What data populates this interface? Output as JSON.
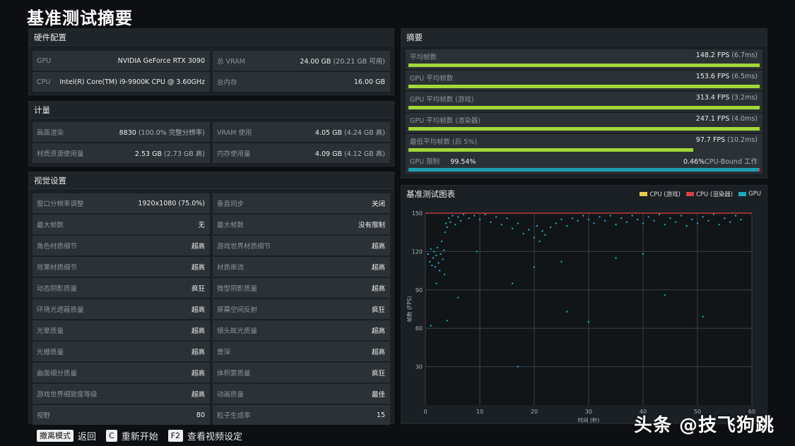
{
  "page_title": "基准测试摘要",
  "hardware": {
    "title": "硬件配置",
    "rows": [
      {
        "label": "GPU",
        "value": "NVIDIA GeForce RTX 3090",
        "sub": ""
      },
      {
        "label": "总 VRAM",
        "value": "24.00 GB",
        "sub": "(20.21 GB 可用)"
      },
      {
        "label": "CPU",
        "value": "Intel(R) Core(TM) i9-9900K CPU @ 3.60GHz",
        "sub": ""
      },
      {
        "label": "总内存",
        "value": "16.00 GB",
        "sub": ""
      }
    ]
  },
  "metrics": {
    "title": "计量",
    "rows": [
      {
        "label": "画面渲染",
        "value": "8830",
        "sub": "(100.0% 完整分辨率)"
      },
      {
        "label": "VRAM 使用",
        "value": "4.05 GB",
        "sub": "(4.24 GB 高)"
      },
      {
        "label": "材质资源使用量",
        "value": "2.53 GB",
        "sub": "(2.73 GB 高)"
      },
      {
        "label": "内存使用量",
        "value": "4.09 GB",
        "sub": "(4.12 GB 高)"
      }
    ]
  },
  "visual": {
    "title": "视觉设置",
    "rows": [
      {
        "label": "窗口分辨率调整",
        "value": "1920x1080 (75.0%)"
      },
      {
        "label": "垂直同步",
        "value": "关闭"
      },
      {
        "label": "最大帧数",
        "value": "无"
      },
      {
        "label": "最大帧数",
        "value": "没有限制"
      },
      {
        "label": "角色材质细节",
        "value": "超高"
      },
      {
        "label": "游戏世界材质细节",
        "value": "超高"
      },
      {
        "label": "效果材质细节",
        "value": "超高"
      },
      {
        "label": "材质串流",
        "value": "超高"
      },
      {
        "label": "动态阴影质量",
        "value": "疯狂"
      },
      {
        "label": "微型阴影质量",
        "value": "超高"
      },
      {
        "label": "环境光遮蔽质量",
        "value": "超高"
      },
      {
        "label": "屏幕空间反射",
        "value": "疯狂"
      },
      {
        "label": "光晕质量",
        "value": "超高"
      },
      {
        "label": "镜头眩光质量",
        "value": "超高"
      },
      {
        "label": "光栅质量",
        "value": "超高"
      },
      {
        "label": "景深",
        "value": "超高"
      },
      {
        "label": "曲面细分质量",
        "value": "超高"
      },
      {
        "label": "体积雾质量",
        "value": "疯狂"
      },
      {
        "label": "游戏世界细致度等级",
        "value": "超高"
      },
      {
        "label": "动画质量",
        "value": "最佳"
      },
      {
        "label": "视野",
        "value": "80"
      },
      {
        "label": "粒子生成率",
        "value": "15"
      }
    ]
  },
  "summary": {
    "title": "摘要",
    "rows": [
      {
        "label": "平均帧数",
        "value": "148.2 FPS",
        "sub": "(6.7ms)",
        "fill": 1.0
      },
      {
        "label": "GPU 平均帧数",
        "value": "153.6 FPS",
        "sub": "(6.5ms)",
        "fill": 1.0
      },
      {
        "label": "GPU 平均帧数 (游戏)",
        "value": "313.4 FPS",
        "sub": "(3.2ms)",
        "fill": 1.0
      },
      {
        "label": "GPU 平均帧数 (渲染器)",
        "value": "247.1 FPS",
        "sub": "(4.0ms)",
        "fill": 1.0
      },
      {
        "label": "最低平均帧数 (后 5%)",
        "value": "97.7 FPS",
        "sub": "(10.2ms)",
        "fill": 0.81
      }
    ],
    "gpu_limit": {
      "label": "GPU 限制",
      "gpu_pct": "99.54%",
      "cpu_pct": "0.46%",
      "cpu_label": "CPU-Bound 工作",
      "gpu_fraction": 0.9954
    }
  },
  "chart_panel_title": "基准测试图表",
  "chart_data": {
    "type": "scatter",
    "xlabel": "时间 (秒)",
    "ylabel": "帧数 (FPS)",
    "xlim": [
      0,
      60
    ],
    "ylim": [
      0,
      150
    ],
    "xticks": [
      "0",
      "10",
      "20",
      "30",
      "40",
      "50",
      "60"
    ],
    "yticks": [
      "30",
      "60",
      "90",
      "120",
      "150"
    ],
    "grid": true,
    "legend_position": "top-right",
    "legend": [
      {
        "name": "CPU (游戏)",
        "color": "#e8c84a"
      },
      {
        "name": "CPU (渲染器)",
        "color": "#d8404a"
      },
      {
        "name": "GPU",
        "color": "#1ea7be"
      }
    ],
    "series": [
      {
        "name": "CPU (渲染器)",
        "color": "#d8404a",
        "points": [
          [
            0,
            150
          ],
          [
            60,
            150
          ]
        ]
      },
      {
        "name": "GPU",
        "color": "#1ea7be",
        "points": [
          [
            0.5,
            118
          ],
          [
            0.8,
            112
          ],
          [
            1.0,
            122
          ],
          [
            1.2,
            109
          ],
          [
            1.4,
            115
          ],
          [
            1.6,
            120
          ],
          [
            1.8,
            108
          ],
          [
            2.0,
            117
          ],
          [
            2.2,
            123
          ],
          [
            2.4,
            111
          ],
          [
            2.6,
            105
          ],
          [
            2.8,
            118
          ],
          [
            3.0,
            128
          ],
          [
            3.2,
            114
          ],
          [
            3.4,
            121
          ],
          [
            3.6,
            135
          ],
          [
            3.8,
            142
          ],
          [
            4.0,
            139
          ],
          [
            4.3,
            146
          ],
          [
            4.6,
            143
          ],
          [
            5.0,
            148
          ],
          [
            5.5,
            141
          ],
          [
            6.0,
            147
          ],
          [
            6.5,
            144
          ],
          [
            7.0,
            149
          ],
          [
            8.0,
            146
          ],
          [
            9.0,
            148
          ],
          [
            10.0,
            145
          ],
          [
            11.0,
            149
          ],
          [
            12.0,
            143
          ],
          [
            13.0,
            147
          ],
          [
            14.0,
            141
          ],
          [
            15.0,
            146
          ],
          [
            16.0,
            138
          ],
          [
            17.0,
            142
          ],
          [
            18.0,
            134
          ],
          [
            19.0,
            137
          ],
          [
            20.0,
            131
          ],
          [
            20.5,
            140
          ],
          [
            21.0,
            128
          ],
          [
            21.5,
            136
          ],
          [
            22.0,
            133
          ],
          [
            23.0,
            139
          ],
          [
            24.0,
            142
          ],
          [
            25.0,
            145
          ],
          [
            26.0,
            140
          ],
          [
            27.0,
            146
          ],
          [
            28.0,
            144
          ],
          [
            29.0,
            148
          ],
          [
            30.0,
            145
          ],
          [
            31.0,
            142
          ],
          [
            32.0,
            147
          ],
          [
            33.0,
            144
          ],
          [
            34.0,
            148
          ],
          [
            35.0,
            141
          ],
          [
            36.0,
            146
          ],
          [
            37.0,
            143
          ],
          [
            38.0,
            148
          ],
          [
            39.0,
            145
          ],
          [
            40.0,
            142
          ],
          [
            41.0,
            147
          ],
          [
            42.0,
            144
          ],
          [
            43.0,
            149
          ],
          [
            44.0,
            141
          ],
          [
            45.0,
            146
          ],
          [
            46.0,
            143
          ],
          [
            47.0,
            148
          ],
          [
            48.0,
            140
          ],
          [
            49.0,
            145
          ],
          [
            50.0,
            142
          ],
          [
            51.0,
            147
          ],
          [
            52.0,
            144
          ],
          [
            53.0,
            149
          ],
          [
            54.0,
            141
          ],
          [
            55.0,
            146
          ],
          [
            56.0,
            143
          ],
          [
            57.0,
            148
          ],
          [
            58.0,
            145
          ],
          [
            2.0,
            95
          ],
          [
            3.5,
            102
          ],
          [
            1.0,
            62
          ],
          [
            6.0,
            84
          ],
          [
            16.0,
            95
          ],
          [
            20.0,
            108
          ],
          [
            26.0,
            73
          ],
          [
            30.0,
            65
          ],
          [
            35.0,
            115
          ],
          [
            44.0,
            86
          ],
          [
            51.0,
            69
          ],
          [
            17.0,
            30
          ],
          [
            25.0,
            112
          ],
          [
            40.0,
            118
          ],
          [
            9.5,
            120
          ],
          [
            4.0,
            66
          ]
        ]
      }
    ]
  },
  "footer": {
    "items": [
      {
        "key": "撤离模式",
        "action": "返回"
      },
      {
        "key": "C",
        "action": "重新开始"
      },
      {
        "key": "F2",
        "action": "查看视频设定"
      }
    ]
  },
  "watermark": "头条 @技飞狗跳",
  "colors": {
    "accent_bar": "#a4d639",
    "gpu_bar": "#1e9fb4",
    "cpu_bar": "#d04040"
  }
}
